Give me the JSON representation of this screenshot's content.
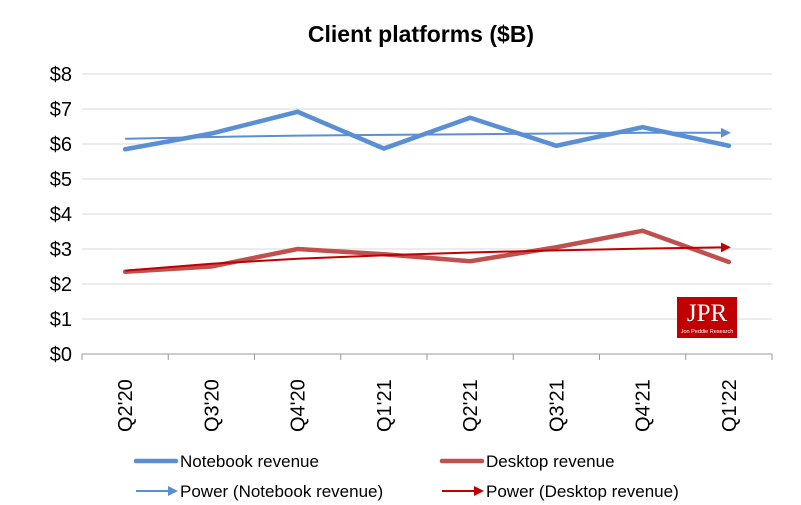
{
  "chart_data": {
    "type": "line",
    "title": "Client platforms ($B)",
    "categories": [
      "Q2'20",
      "Q3'20",
      "Q4'20",
      "Q1'21",
      "Q2'21",
      "Q3'21",
      "Q4'21",
      "Q1'22"
    ],
    "y_ticks": [
      "$0",
      "$1",
      "$2",
      "$3",
      "$4",
      "$5",
      "$6",
      "$7",
      "$8"
    ],
    "ylim": [
      0,
      8
    ],
    "grid": true,
    "legend_position": "bottom",
    "series": [
      {
        "name": "Notebook revenue",
        "color": "#5B8FD4",
        "style": "thick-line",
        "values": [
          5.85,
          6.3,
          6.92,
          5.87,
          6.75,
          5.95,
          6.48,
          5.95
        ]
      },
      {
        "name": "Desktop revenue",
        "color": "#C0504D",
        "style": "thick-line",
        "values": [
          2.35,
          2.5,
          3.0,
          2.85,
          2.65,
          3.05,
          3.52,
          2.63
        ]
      },
      {
        "name": "Power (Notebook revenue)",
        "color": "#5B8FD4",
        "style": "trendline-arrow",
        "values": [
          6.15,
          6.2,
          6.24,
          6.26,
          6.28,
          6.3,
          6.32,
          6.32
        ]
      },
      {
        "name": "Power (Desktop revenue)",
        "color": "#C00000",
        "style": "trendline-arrow",
        "values": [
          2.38,
          2.58,
          2.72,
          2.82,
          2.9,
          2.96,
          3.01,
          3.05
        ]
      }
    ]
  },
  "logo": {
    "main": "JPR",
    "sub": "Jon Peddie Research",
    "bg_color": "#C00000"
  }
}
